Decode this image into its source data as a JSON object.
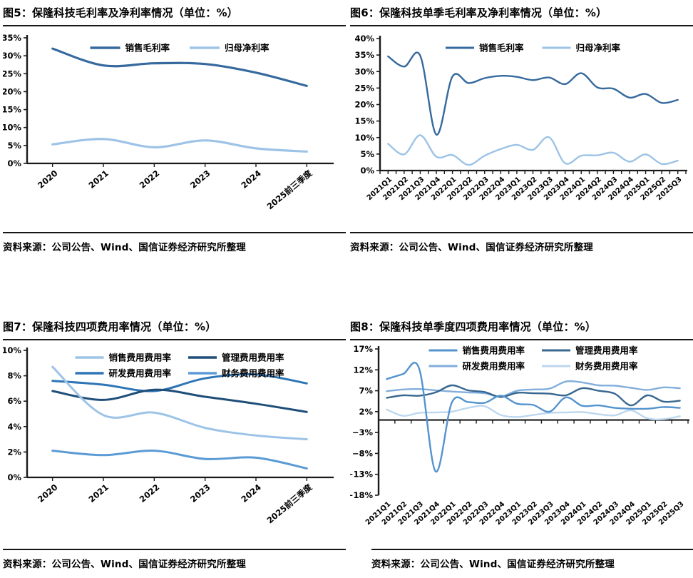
{
  "chart_data": [
    {
      "id": "fig5",
      "type": "line",
      "title": "图5：保隆科技毛利率及净利率情况（单位：%）",
      "source": "资料来源：公司公告、Wind、国信证券经济研究所整理",
      "unit": "%",
      "grid": false,
      "legend_position": "top-center",
      "categories": [
        "2020",
        "2021",
        "2022",
        "2023",
        "2024",
        "2025前三季度"
      ],
      "ylim": [
        0,
        35
      ],
      "ystep": 5,
      "yticks": [
        "0%",
        "5%",
        "10%",
        "15%",
        "20%",
        "25%",
        "30%",
        "35%"
      ],
      "series": [
        {
          "name": "销售毛利率",
          "color": "#36699E",
          "values": [
            32.0,
            27.3,
            27.9,
            27.7,
            25.3,
            21.6
          ]
        },
        {
          "name": "归母净利率",
          "color": "#9DC3E6",
          "values": [
            5.3,
            6.8,
            4.5,
            6.4,
            4.2,
            3.3
          ]
        }
      ]
    },
    {
      "id": "fig6",
      "type": "line",
      "title": "图6：保隆科技单季毛利率及净利率情况（单位：%）",
      "source": "资料来源：公司公告、Wind、国信证券经济研究所整理",
      "unit": "%",
      "grid": false,
      "legend_position": "top-center",
      "categories": [
        "2021Q1",
        "2021Q2",
        "2021Q3",
        "2021Q4",
        "2022Q1",
        "2022Q2",
        "2022Q3",
        "2022Q4",
        "2023Q1",
        "2023Q2",
        "2023Q3",
        "2023Q4",
        "2024Q1",
        "2024Q2",
        "2024Q3",
        "2024Q4",
        "2025Q1",
        "2025Q2",
        "2025Q3"
      ],
      "ylim": [
        0,
        40
      ],
      "ystep": 5,
      "yticks": [
        "0%",
        "5%",
        "10%",
        "15%",
        "20%",
        "25%",
        "30%",
        "35%",
        "40%"
      ],
      "series": [
        {
          "name": "销售毛利率",
          "color": "#36699E",
          "values": [
            34.6,
            31.5,
            34.8,
            10.9,
            28.5,
            26.5,
            28.0,
            28.7,
            28.4,
            27.4,
            28.2,
            26.2,
            29.5,
            25.2,
            24.8,
            22.1,
            23.2,
            20.5,
            21.4
          ]
        },
        {
          "name": "归母净利率",
          "color": "#9DC3E6",
          "values": [
            8.1,
            4.9,
            10.7,
            4.2,
            4.7,
            1.7,
            4.5,
            6.5,
            7.8,
            6.3,
            10.1,
            2.2,
            4.5,
            4.6,
            5.4,
            2.7,
            4.9,
            2.0,
            3.0
          ]
        }
      ]
    },
    {
      "id": "fig7",
      "type": "line",
      "title": "图7：保隆科技四项费用率情况（单位：%）",
      "source": "资料来源：公司公告、Wind、国信证券经济研究所整理",
      "unit": "%",
      "grid": false,
      "legend_position": "top-center-2rows",
      "categories": [
        "2020",
        "2021",
        "2022",
        "2023",
        "2024",
        "2025前三季度"
      ],
      "ylim": [
        0,
        10
      ],
      "ystep": 2,
      "yticks": [
        "0%",
        "2%",
        "4%",
        "6%",
        "8%",
        "10%"
      ],
      "series": [
        {
          "name": "销售费用费用率",
          "color": "#9DC3E6",
          "values": [
            8.7,
            4.9,
            5.1,
            3.9,
            3.3,
            3.0
          ]
        },
        {
          "name": "管理费用费用率",
          "color": "#1F4E79",
          "values": [
            6.8,
            6.1,
            6.9,
            6.35,
            5.8,
            5.15
          ]
        },
        {
          "name": "研发费用费用率",
          "color": "#2E75B6",
          "values": [
            7.6,
            7.3,
            6.8,
            7.8,
            8.1,
            7.4
          ]
        },
        {
          "name": "财务费用费用率",
          "color": "#5B9BD5",
          "values": [
            2.1,
            1.75,
            2.1,
            1.45,
            1.55,
            0.7
          ]
        }
      ]
    },
    {
      "id": "fig8",
      "type": "line",
      "title": "图8：保隆科技单季度四项费用率情况（单位：%）",
      "source": "资料来源：公司公告、Wind、国信证券经济研究所整理",
      "unit": "%",
      "grid": false,
      "legend_position": "top-center-2rows",
      "categories": [
        "2021Q1",
        "2021Q2",
        "2021Q3",
        "2021Q4",
        "2022Q1",
        "2022Q2",
        "2022Q3",
        "2022Q4",
        "2023Q1",
        "2023Q2",
        "2023Q3",
        "2023Q4",
        "2024Q1",
        "2024Q2",
        "2024Q3",
        "2024Q4",
        "2025Q1",
        "2025Q2",
        "2025Q3"
      ],
      "ylim": [
        -18,
        17
      ],
      "ystep": 5,
      "yticks": [
        "−18%",
        "−13%",
        "−8%",
        "−3%",
        "2%",
        "7%",
        "12%",
        "17%"
      ],
      "series": [
        {
          "name": "销售费用费用率",
          "color": "#5493CE",
          "values": [
            9.8,
            11.0,
            12.2,
            -12.3,
            4.2,
            4.3,
            4.1,
            5.8,
            3.9,
            3.6,
            2.0,
            5.4,
            3.4,
            3.5,
            2.9,
            2.7,
            2.7,
            3.1,
            2.9
          ]
        },
        {
          "name": "管理费用费用率",
          "color": "#38678F",
          "values": [
            5.3,
            5.9,
            5.8,
            6.6,
            8.3,
            7.1,
            6.7,
            5.5,
            6.5,
            6.4,
            6.3,
            5.9,
            7.6,
            7.0,
            6.3,
            3.5,
            5.9,
            4.4,
            4.6
          ]
        },
        {
          "name": "研发费用费用率",
          "color": "#82AEDC",
          "values": [
            6.9,
            7.3,
            7.4,
            7.1,
            6.8,
            6.6,
            6.4,
            5.6,
            7.0,
            7.3,
            7.5,
            9.2,
            9.0,
            8.3,
            8.2,
            7.7,
            7.2,
            7.8,
            7.6
          ]
        },
        {
          "name": "财务费用费用率",
          "color": "#BDD7EE",
          "values": [
            2.5,
            1.0,
            1.7,
            1.8,
            2.0,
            2.9,
            3.3,
            1.2,
            0.7,
            1.2,
            1.7,
            1.8,
            1.9,
            1.4,
            1.1,
            2.3,
            0.4,
            0.2,
            0.9
          ]
        }
      ]
    }
  ]
}
